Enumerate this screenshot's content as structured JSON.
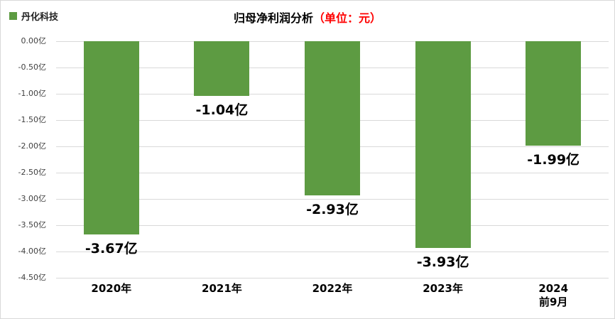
{
  "legend": {
    "label": "丹化科技"
  },
  "title": {
    "main": "归母净利润分析",
    "unit": "（单位：元）"
  },
  "chart_data": {
    "type": "bar",
    "title": "归母净利润分析（单位：元）",
    "series_name": "丹化科技",
    "categories": [
      "2020年",
      "2021年",
      "2022年",
      "2023年",
      "2024\n前9月"
    ],
    "values": [
      -3.67,
      -1.04,
      -2.93,
      -3.93,
      -1.99
    ],
    "value_labels": [
      "-3.67亿",
      "-1.04亿",
      "-2.93亿",
      "-3.93亿",
      "-1.99亿"
    ],
    "xlabel": "",
    "ylabel": "",
    "ylim": [
      -4.5,
      0
    ],
    "ytick_step": 0.5,
    "ytick_labels": [
      "0.00亿",
      "-0.50亿",
      "-1.00亿",
      "-1.50亿",
      "-2.00亿",
      "-2.50亿",
      "-3.00亿",
      "-3.50亿",
      "-4.00亿",
      "-4.50亿"
    ],
    "grid": true,
    "legend_position": "top-left",
    "colors": {
      "bar": "#5d9b42",
      "unit_text": "#ff0000",
      "gridline": "#d9d9d9",
      "label_text": "#000000"
    }
  }
}
